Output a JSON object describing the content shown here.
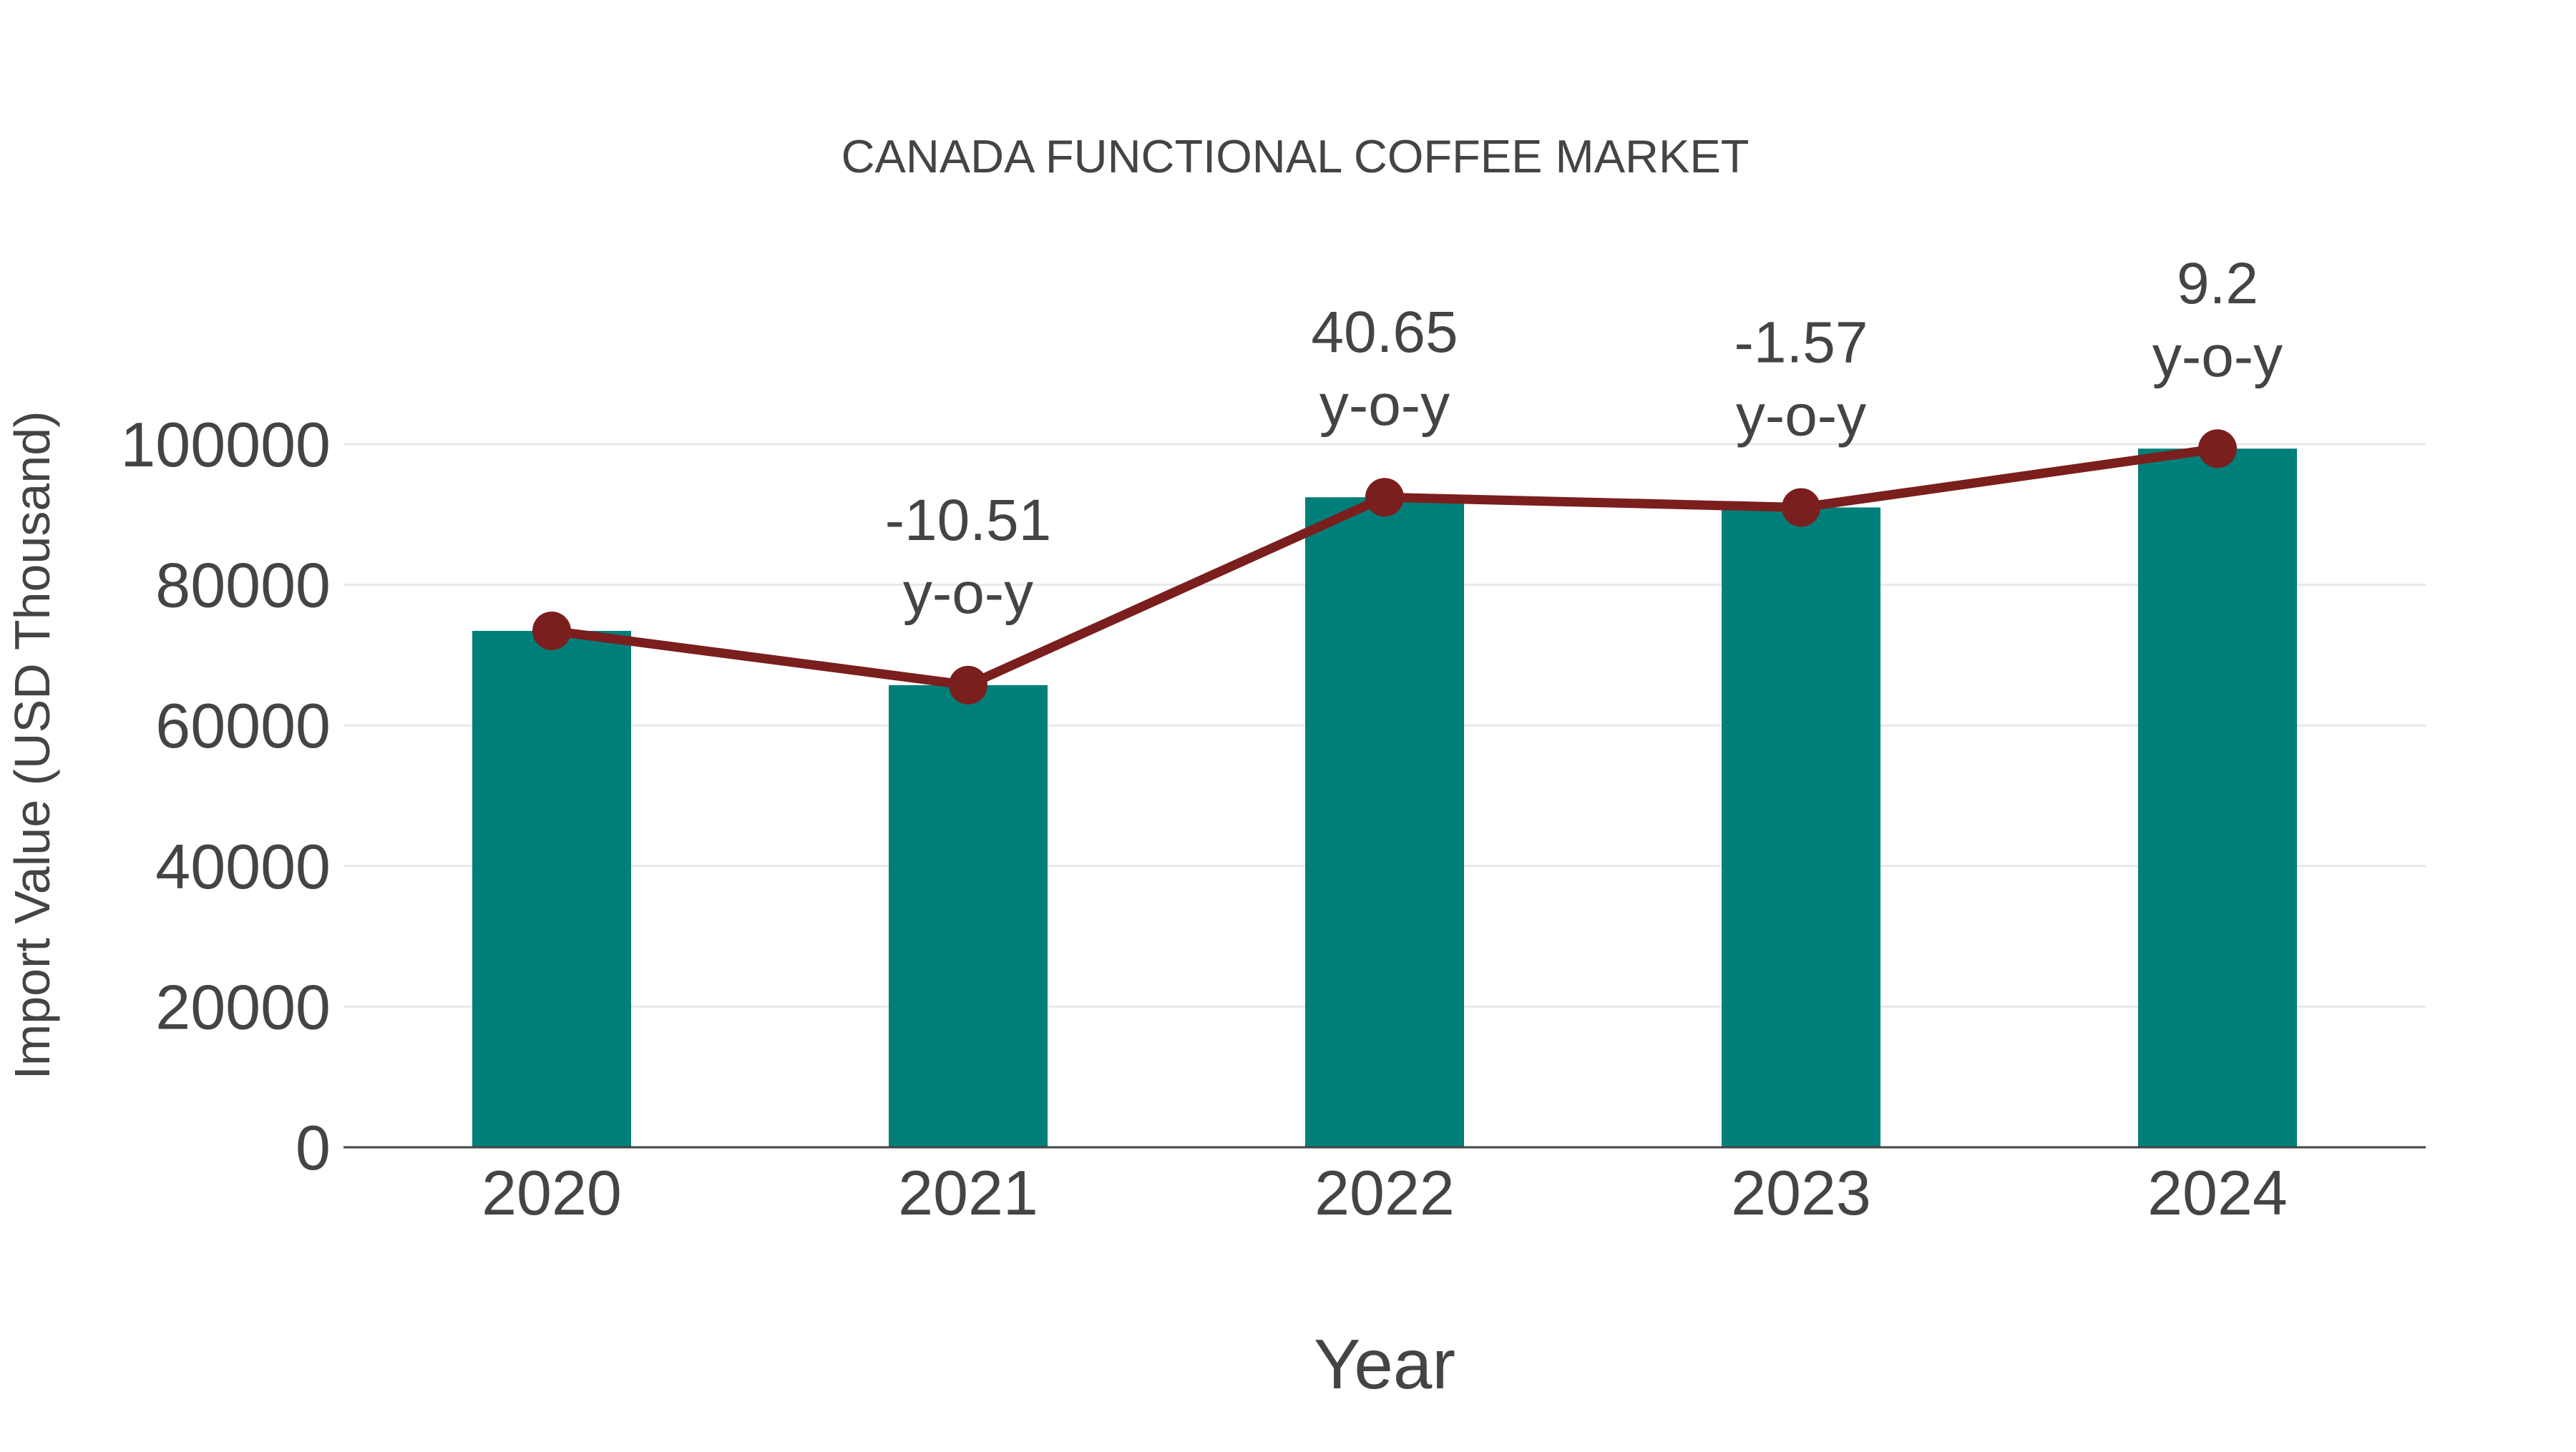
{
  "chart_data": {
    "type": "bar",
    "title": "CANADA FUNCTIONAL COFFEE MARKET",
    "xlabel": "Year",
    "ylabel": "Import Value (USD Thousand)",
    "categories": [
      "2020",
      "2021",
      "2022",
      "2023",
      "2024"
    ],
    "series": [
      {
        "name": "Import Value",
        "type": "bar",
        "color": "#007f7a",
        "values": [
          73450,
          65730,
          92450,
          91000,
          99370
        ]
      },
      {
        "name": "Import Value Trend",
        "type": "line",
        "color": "#7b1e1e",
        "marker": "circle",
        "values": [
          73450,
          65730,
          92450,
          91000,
          99370
        ]
      }
    ],
    "annotations": [
      {
        "category": "2021",
        "value": "-10.51",
        "suffix": "y-o-y"
      },
      {
        "category": "2022",
        "value": "40.65",
        "suffix": "y-o-y"
      },
      {
        "category": "2023",
        "value": "-1.57",
        "suffix": "y-o-y"
      },
      {
        "category": "2024",
        "value": "9.2",
        "suffix": "y-o-y"
      }
    ],
    "yticks": [
      0,
      20000,
      40000,
      60000,
      80000,
      100000
    ],
    "ylim": [
      0,
      100000
    ],
    "grid": true,
    "legend": "none"
  },
  "colors": {
    "bar": "#007f7a",
    "line": "#7b1e1e",
    "text": "#444444",
    "grid": "#e8e8e8",
    "axis": "#444444"
  }
}
